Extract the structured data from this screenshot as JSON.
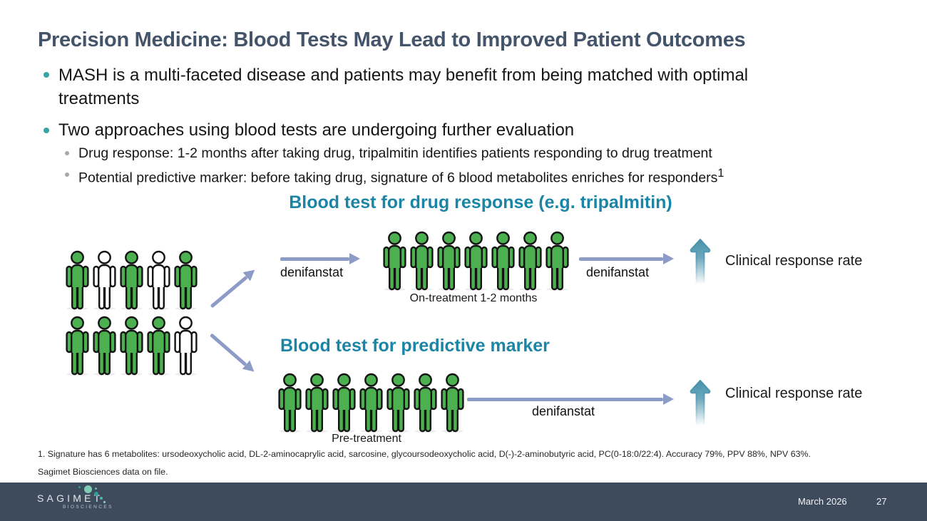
{
  "title": "Precision Medicine: Blood Tests May Lead to Improved Patient Outcomes",
  "bullets": {
    "b1": "MASH is a multi-faceted disease and patients may benefit from being matched with optimal treatments",
    "b2": "Two approaches using blood tests are undergoing further evaluation",
    "sub1": "Drug response: 1-2 months after taking drug, tripalmitin identifies patients responding to drug treatment",
    "sub2": "Potential predictive marker: before taking drug, signature of 6 blood metabolites enriches for responders",
    "sub2_sup": "1"
  },
  "diagram": {
    "heading_top": "Blood test for drug response (e.g. tripalmitin)",
    "heading_bottom": "Blood test for predictive marker",
    "labels": {
      "arrow_top_1": "denifanstat",
      "arrow_top_2": "denifanstat",
      "arrow_bottom": "denifanstat",
      "on_treatment": "On-treatment 1-2 months",
      "pre_treatment": "Pre-treatment",
      "outcome_top": "Clinical response rate",
      "outcome_bottom": "Clinical response rate"
    },
    "groups": {
      "baseline_row1": [
        "green",
        "white",
        "green",
        "white",
        "green"
      ],
      "baseline_row2": [
        "green",
        "green",
        "green",
        "green",
        "white"
      ],
      "on_treatment": [
        "green",
        "green",
        "green",
        "green",
        "green",
        "green",
        "green"
      ],
      "pre_treatment": [
        "green",
        "green",
        "green",
        "green",
        "green",
        "green",
        "green"
      ]
    }
  },
  "footnotes": {
    "line1": "1. Signature has 6 metabolites: ursodeoxycholic acid, DL-2-aminocaprylic acid, sarcosine, glycoursodeoxycholic acid, D(-)-2-aminobutyric acid, PC(0-18:0/22:4). Accuracy 79%, PPV 88%, NPV 63%.",
    "line2": "Sagimet Biosciences data on file."
  },
  "footer": {
    "logo_text": "SAGIMET",
    "logo_subtext": "BIOSCIENCES",
    "date": "March 2026",
    "page_number": "27"
  },
  "colors": {
    "title": "#44546A",
    "heading_teal": "#1b85a6",
    "person_green": "#4cb050",
    "person_white": "#ffffff",
    "arrow_periwinkle": "#8d9cc7",
    "up_arrow_teal": "#4792ac",
    "footer_bg": "#3d4b5d"
  }
}
